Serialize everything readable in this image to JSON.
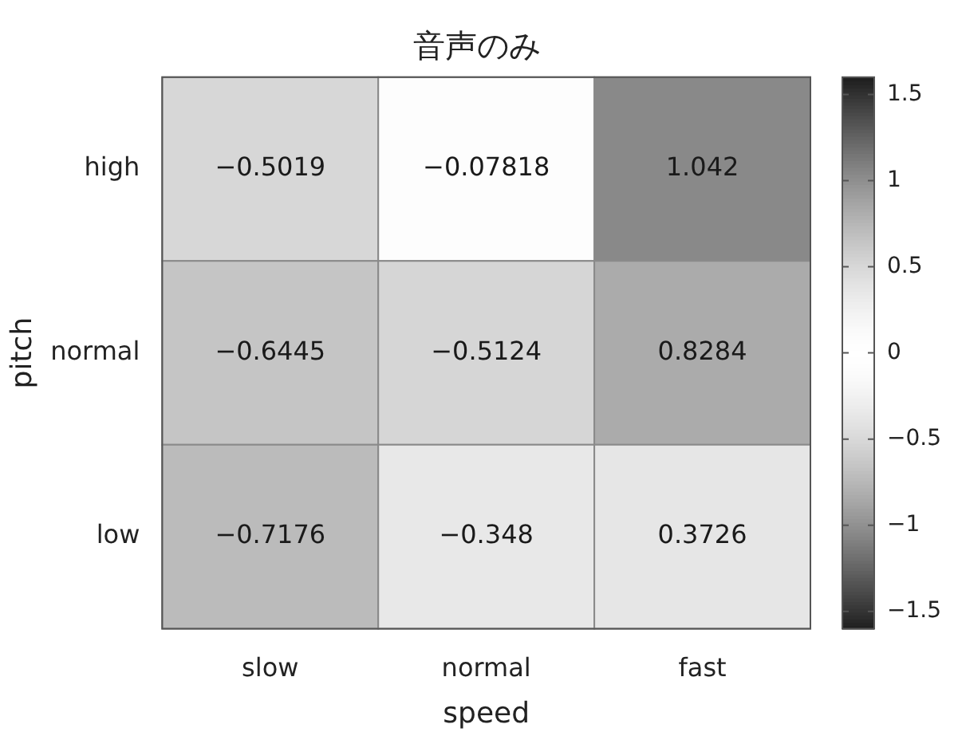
{
  "chart_data": {
    "type": "heatmap",
    "title": "音声のみ",
    "xlabel": "speed",
    "ylabel": "pitch",
    "categories": [
      "slow",
      "normal",
      "fast"
    ],
    "y_categories": [
      "high",
      "normal",
      "low"
    ],
    "cells": [
      [
        -0.5019,
        -0.07818,
        1.042
      ],
      [
        -0.6445,
        -0.5124,
        0.8284
      ],
      [
        -0.7176,
        -0.348,
        0.3726
      ]
    ],
    "cell_labels": [
      [
        "−0.5019",
        "−0.07818",
        "1.042"
      ],
      [
        "−0.6445",
        "−0.5124",
        "0.8284"
      ],
      [
        "−0.7176",
        "−0.348",
        "0.3726"
      ]
    ],
    "clim": [
      -1.6,
      1.6
    ],
    "cticks": [
      {
        "value": -1.5,
        "label": "−1.5"
      },
      {
        "value": -1,
        "label": "−1"
      },
      {
        "value": -0.5,
        "label": "−0.5"
      },
      0,
      0.5,
      1,
      1.5
    ]
  }
}
